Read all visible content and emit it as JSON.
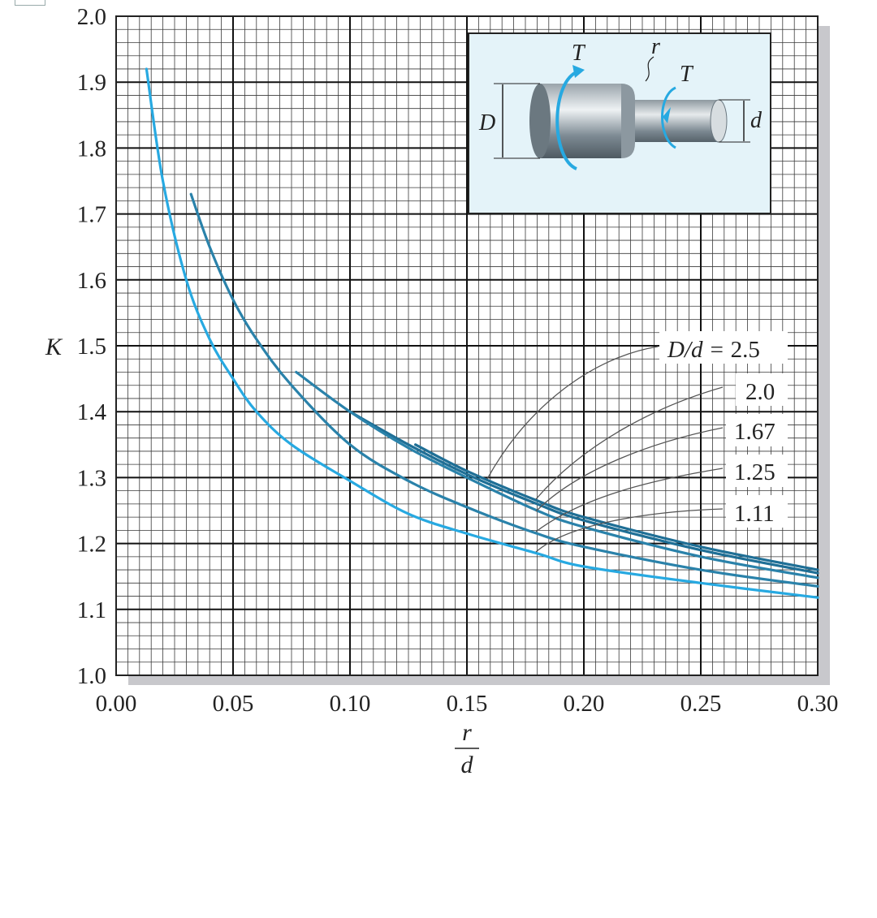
{
  "chart_data": {
    "type": "line",
    "xlabel_num": "r",
    "xlabel_den": "d",
    "ylabel": "K",
    "xlim": [
      0.0,
      0.3
    ],
    "ylim": [
      1.0,
      2.0
    ],
    "grid": true,
    "x_ticks": [
      "0.00",
      "0.05",
      "0.10",
      "0.15",
      "0.20",
      "0.25",
      "0.30"
    ],
    "y_ticks": [
      "1.0",
      "1.1",
      "1.2",
      "1.3",
      "1.4",
      "1.5",
      "1.6",
      "1.7",
      "1.8",
      "1.9",
      "2.0"
    ],
    "legend_prefix": "D/d = ",
    "legend_placement": "right",
    "series": [
      {
        "name": "2.5",
        "color": "#1f6f96",
        "x": [
          0.128,
          0.15,
          0.18,
          0.2,
          0.25,
          0.3
        ],
        "y": [
          1.35,
          1.31,
          1.265,
          1.24,
          1.195,
          1.16
        ]
      },
      {
        "name": "2.0",
        "color": "#1f6f96",
        "x": [
          0.1,
          0.125,
          0.15,
          0.18,
          0.2,
          0.25,
          0.3
        ],
        "y": [
          1.4,
          1.35,
          1.305,
          1.26,
          1.235,
          1.19,
          1.155
        ]
      },
      {
        "name": "1.67",
        "color": "#2a82aa",
        "x": [
          0.077,
          0.1,
          0.125,
          0.15,
          0.18,
          0.2,
          0.25,
          0.3
        ],
        "y": [
          1.46,
          1.4,
          1.345,
          1.3,
          1.25,
          1.225,
          1.18,
          1.148
        ]
      },
      {
        "name": "1.25",
        "color": "#2a82aa",
        "x": [
          0.032,
          0.04,
          0.05,
          0.06,
          0.075,
          0.1,
          0.125,
          0.15,
          0.18,
          0.2,
          0.25,
          0.3
        ],
        "y": [
          1.73,
          1.65,
          1.57,
          1.51,
          1.44,
          1.35,
          1.295,
          1.255,
          1.215,
          1.195,
          1.16,
          1.135
        ]
      },
      {
        "name": "1.11",
        "color": "#27a9e1",
        "x": [
          0.013,
          0.02,
          0.03,
          0.04,
          0.05,
          0.06,
          0.075,
          0.1,
          0.125,
          0.15,
          0.18,
          0.2,
          0.25,
          0.3
        ],
        "y": [
          1.92,
          1.75,
          1.6,
          1.51,
          1.45,
          1.4,
          1.35,
          1.295,
          1.245,
          1.215,
          1.185,
          1.165,
          1.14,
          1.118
        ]
      }
    ],
    "inset": {
      "labels": {
        "D": "D",
        "d": "d",
        "r": "r",
        "T1": "T",
        "T2": "T"
      }
    }
  }
}
